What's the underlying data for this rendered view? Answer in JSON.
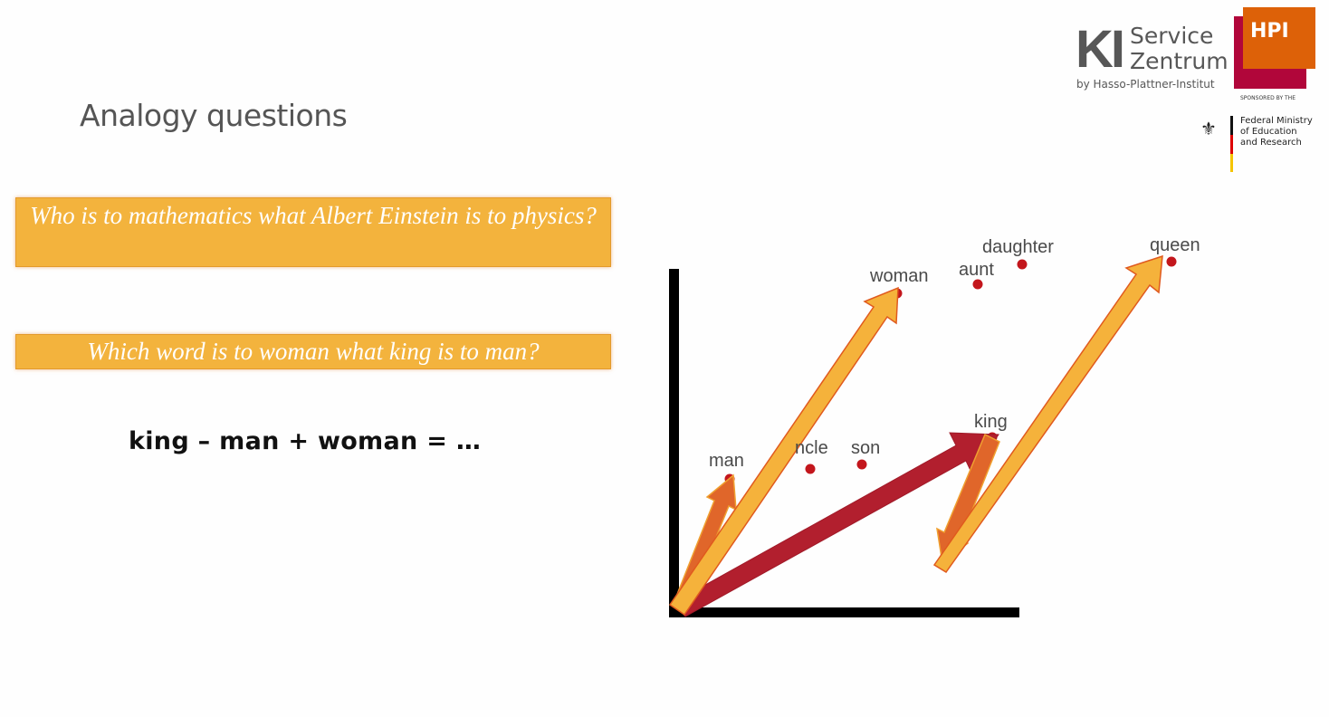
{
  "slide": {
    "title": "Analogy questions",
    "questions": [
      "Who is to mathematics what Albert Einstein is to physics?",
      "Which word is to woman what king is to man?"
    ],
    "equation": "king – man + woman = …"
  },
  "logos": {
    "ki_letters": "KI",
    "ki_line1": "Service",
    "ki_line2": "Zentrum",
    "ki_by": "by Hasso-Plattner-Institut",
    "hpi": "HPI",
    "sponsored": "SPONSORED BY THE",
    "ministry": [
      "Federal Ministry",
      "of Education",
      "and Research"
    ]
  },
  "diagram": {
    "words": [
      {
        "label": "man"
      },
      {
        "label": "ncle"
      },
      {
        "label": "son"
      },
      {
        "label": "woman"
      },
      {
        "label": "aunt"
      },
      {
        "label": "daughter"
      },
      {
        "label": "queen"
      },
      {
        "label": "king"
      }
    ],
    "colors": {
      "dot": "#c3161c",
      "axis": "#000000",
      "arrow_yellow": "#f5b23b",
      "arrow_orange": "#e0662a",
      "arrow_red": "#b21f2e",
      "arrow_outline": "#e05a1e"
    }
  }
}
